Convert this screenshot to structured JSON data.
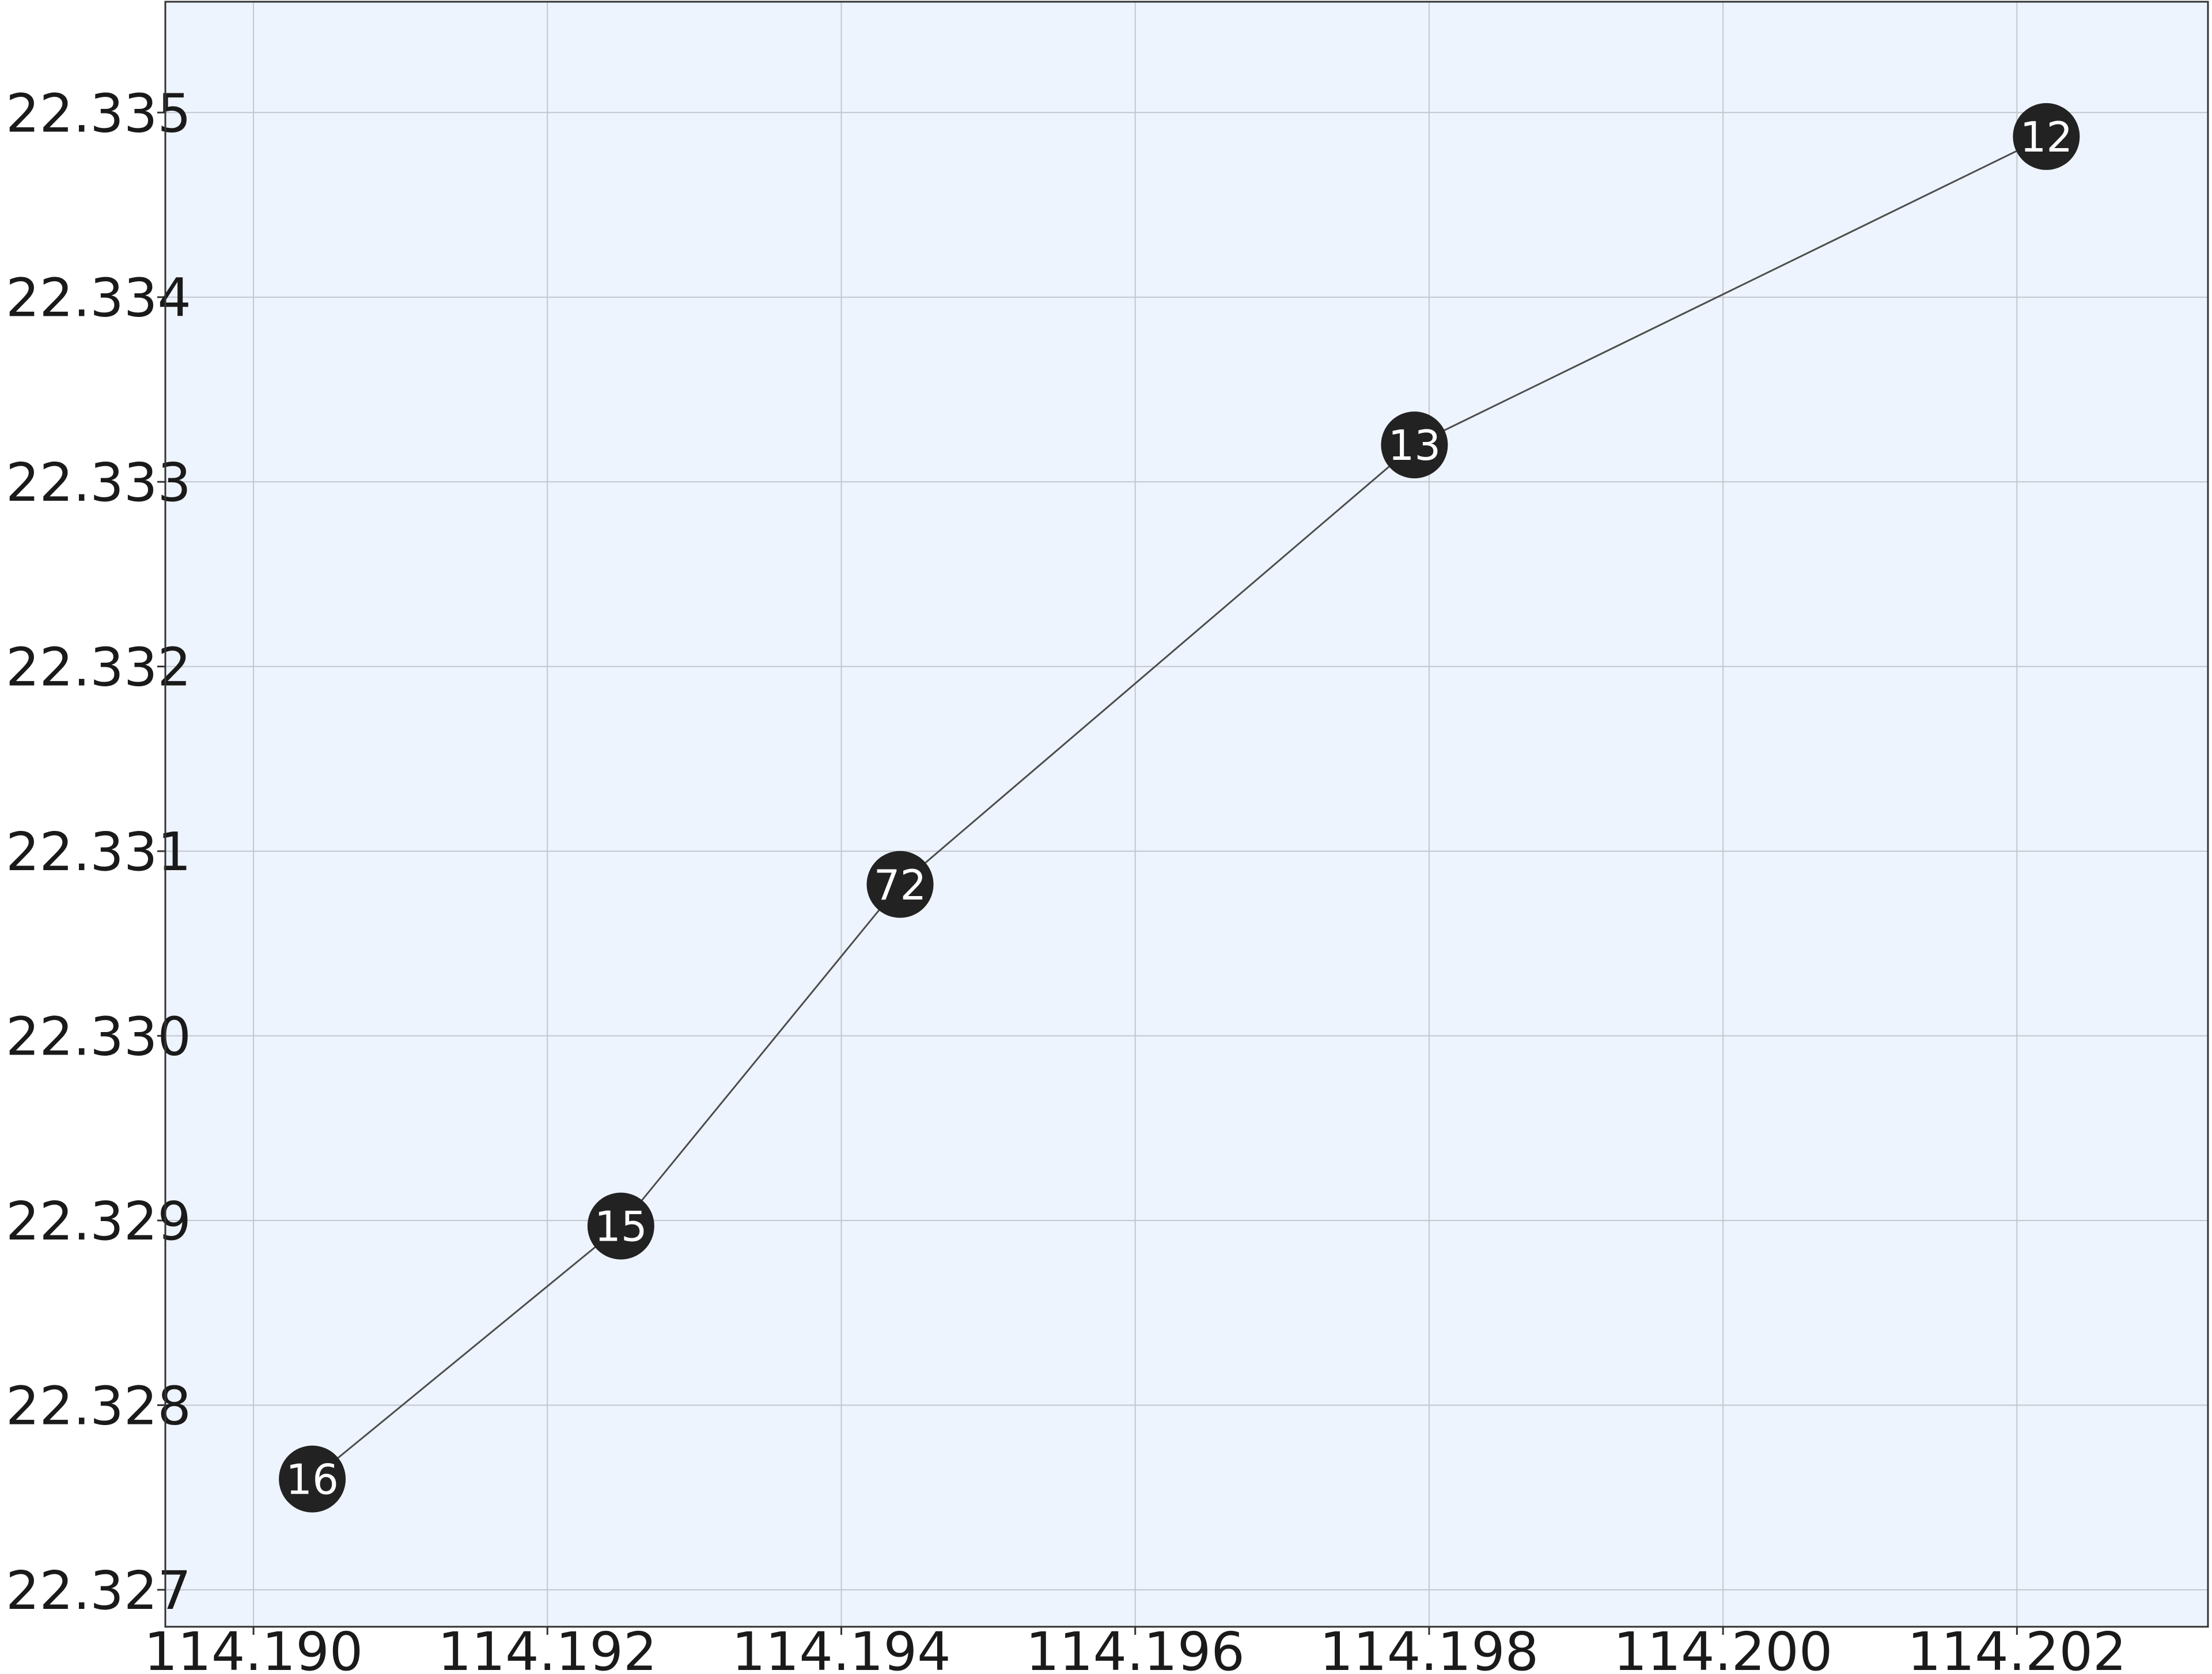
{
  "chart_data": {
    "type": "line",
    "title": "",
    "xlabel": "",
    "ylabel": "",
    "xlim": [
      114.1894,
      114.2033
    ],
    "ylim": [
      22.3268,
      22.3356
    ],
    "x_ticks": [
      "114.190",
      "114.192",
      "114.194",
      "114.196",
      "114.198",
      "114.200",
      "114.202"
    ],
    "x_tick_values": [
      114.19,
      114.192,
      114.194,
      114.196,
      114.198,
      114.2,
      114.202
    ],
    "y_ticks": [
      "22.327",
      "22.328",
      "22.329",
      "22.330",
      "22.331",
      "22.332",
      "22.333",
      "22.334",
      "22.335"
    ],
    "y_tick_values": [
      22.327,
      22.328,
      22.329,
      22.33,
      22.331,
      22.332,
      22.333,
      22.334,
      22.335
    ],
    "grid": true,
    "series": [
      {
        "points": [
          {
            "x": 114.1904,
            "y": 22.3276,
            "label": "16"
          },
          {
            "x": 114.1925,
            "y": 22.32897,
            "label": "15"
          },
          {
            "x": 114.1944,
            "y": 22.33082,
            "label": "72"
          },
          {
            "x": 114.1979,
            "y": 22.3332,
            "label": "13"
          },
          {
            "x": 114.2022,
            "y": 22.33487,
            "label": "12"
          }
        ]
      }
    ],
    "colors": {
      "plot_background": "#eef4fe",
      "grid": "#c3c7cc",
      "line": "#4d4d4d",
      "marker": "#222222",
      "marker_text": "#ffffff",
      "frame": "#333333"
    }
  }
}
